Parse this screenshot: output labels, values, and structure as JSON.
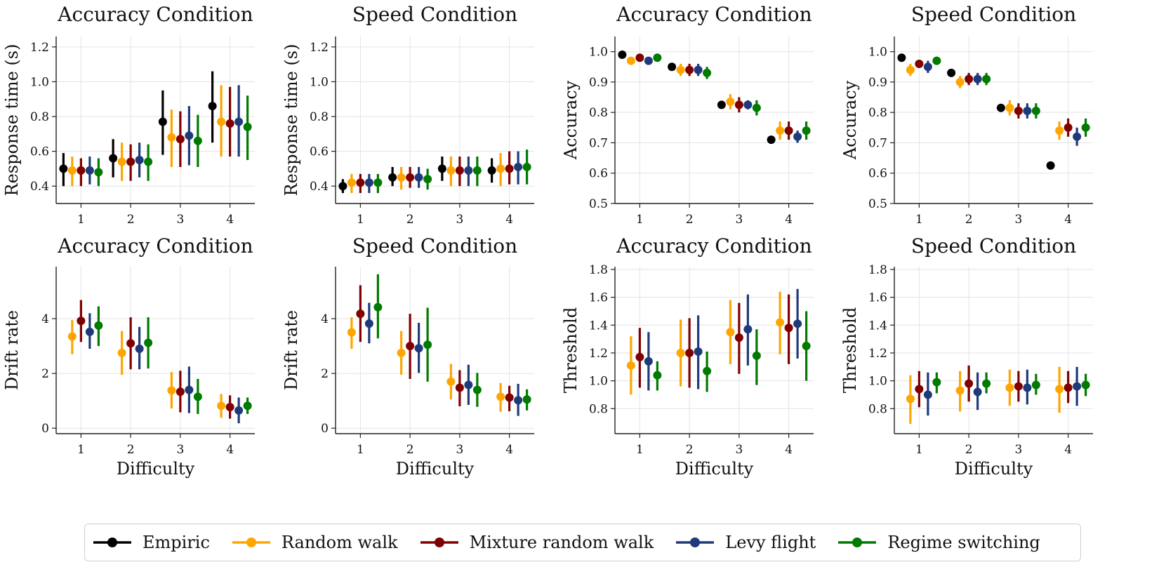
{
  "figure": {
    "legend": [
      {
        "name": "Empiric",
        "color": "#000000"
      },
      {
        "name": "Random walk",
        "color": "#FFA500"
      },
      {
        "name": "Mixture random walk",
        "color": "#800000"
      },
      {
        "name": "Levy flight",
        "color": "#1F3A7A"
      },
      {
        "name": "Regime switching",
        "color": "#007A00"
      }
    ]
  },
  "chart_data": [
    {
      "type": "scatter",
      "title": "Accuracy Condition",
      "xlabel": "",
      "ylabel": "Response time (s)",
      "categories": [
        "1",
        "2",
        "3",
        "4"
      ],
      "ylim": [
        0.3,
        1.26
      ],
      "yticks": [
        "0.4",
        "0.6",
        "0.8",
        "1.0",
        "1.2"
      ],
      "series": [
        {
          "name": "Empiric",
          "values": [
            0.5,
            0.56,
            0.77,
            0.86
          ],
          "lower": [
            0.4,
            0.45,
            0.58,
            0.65
          ],
          "upper": [
            0.59,
            0.67,
            0.95,
            1.06
          ]
        },
        {
          "name": "Random walk",
          "values": [
            0.49,
            0.54,
            0.68,
            0.77
          ],
          "lower": [
            0.4,
            0.43,
            0.51,
            0.57
          ],
          "upper": [
            0.57,
            0.65,
            0.84,
            0.98
          ]
        },
        {
          "name": "Mixture random walk",
          "values": [
            0.49,
            0.54,
            0.67,
            0.76
          ],
          "lower": [
            0.4,
            0.43,
            0.51,
            0.57
          ],
          "upper": [
            0.56,
            0.64,
            0.83,
            0.97
          ]
        },
        {
          "name": "Levy flight",
          "values": [
            0.49,
            0.55,
            0.69,
            0.77
          ],
          "lower": [
            0.41,
            0.45,
            0.52,
            0.57
          ],
          "upper": [
            0.57,
            0.65,
            0.86,
            0.98
          ]
        },
        {
          "name": "Regime switching",
          "values": [
            0.48,
            0.54,
            0.66,
            0.74
          ],
          "lower": [
            0.4,
            0.43,
            0.51,
            0.55
          ],
          "upper": [
            0.56,
            0.64,
            0.81,
            0.92
          ]
        }
      ]
    },
    {
      "type": "scatter",
      "title": "Speed Condition",
      "xlabel": "",
      "ylabel": "Response time (s)",
      "categories": [
        "1",
        "2",
        "3",
        "4"
      ],
      "ylim": [
        0.3,
        1.26
      ],
      "yticks": [
        "0.4",
        "0.6",
        "0.8",
        "1.0",
        "1.2"
      ],
      "series": [
        {
          "name": "Empiric",
          "values": [
            0.4,
            0.45,
            0.5,
            0.49
          ],
          "lower": [
            0.36,
            0.4,
            0.43,
            0.42
          ],
          "upper": [
            0.44,
            0.51,
            0.57,
            0.56
          ]
        },
        {
          "name": "Random walk",
          "values": [
            0.42,
            0.45,
            0.49,
            0.5
          ],
          "lower": [
            0.36,
            0.38,
            0.4,
            0.4
          ],
          "upper": [
            0.47,
            0.51,
            0.57,
            0.59
          ]
        },
        {
          "name": "Mixture random walk",
          "values": [
            0.42,
            0.45,
            0.49,
            0.5
          ],
          "lower": [
            0.36,
            0.39,
            0.4,
            0.41
          ],
          "upper": [
            0.47,
            0.51,
            0.57,
            0.6
          ]
        },
        {
          "name": "Levy flight",
          "values": [
            0.42,
            0.45,
            0.49,
            0.51
          ],
          "lower": [
            0.36,
            0.39,
            0.4,
            0.41
          ],
          "upper": [
            0.47,
            0.51,
            0.57,
            0.6
          ]
        },
        {
          "name": "Regime switching",
          "values": [
            0.42,
            0.44,
            0.49,
            0.51
          ],
          "lower": [
            0.36,
            0.38,
            0.4,
            0.41
          ],
          "upper": [
            0.47,
            0.5,
            0.57,
            0.61
          ]
        }
      ]
    },
    {
      "type": "scatter",
      "title": "Accuracy Condition",
      "xlabel": "",
      "ylabel": "Accuracy",
      "categories": [
        "1",
        "2",
        "3",
        "4"
      ],
      "ylim": [
        0.5,
        1.05
      ],
      "yticks": [
        "0.5",
        "0.6",
        "0.7",
        "0.8",
        "0.9",
        "1.0"
      ],
      "series": [
        {
          "name": "Empiric",
          "values": [
            0.99,
            0.95,
            0.825,
            0.71
          ],
          "lower": [
            0.99,
            0.95,
            0.825,
            0.71
          ],
          "upper": [
            0.99,
            0.95,
            0.825,
            0.71
          ]
        },
        {
          "name": "Random walk",
          "values": [
            0.97,
            0.94,
            0.835,
            0.74
          ],
          "lower": [
            0.96,
            0.92,
            0.81,
            0.71
          ],
          "upper": [
            0.98,
            0.96,
            0.86,
            0.77
          ]
        },
        {
          "name": "Mixture random walk",
          "values": [
            0.98,
            0.94,
            0.825,
            0.74
          ],
          "lower": [
            0.97,
            0.92,
            0.8,
            0.71
          ],
          "upper": [
            0.99,
            0.96,
            0.85,
            0.77
          ]
        },
        {
          "name": "Levy flight",
          "values": [
            0.97,
            0.94,
            0.825,
            0.72
          ],
          "lower": [
            0.96,
            0.92,
            0.81,
            0.7
          ],
          "upper": [
            0.98,
            0.96,
            0.84,
            0.74
          ]
        },
        {
          "name": "Regime switching",
          "values": [
            0.98,
            0.93,
            0.815,
            0.74
          ],
          "lower": [
            0.97,
            0.91,
            0.79,
            0.71
          ],
          "upper": [
            0.99,
            0.95,
            0.84,
            0.77
          ]
        }
      ]
    },
    {
      "type": "scatter",
      "title": "Speed Condition",
      "xlabel": "",
      "ylabel": "Accuracy",
      "categories": [
        "1",
        "2",
        "3",
        "4"
      ],
      "ylim": [
        0.5,
        1.05
      ],
      "yticks": [
        "0.5",
        "0.6",
        "0.7",
        "0.8",
        "0.9",
        "1.0"
      ],
      "series": [
        {
          "name": "Empiric",
          "values": [
            0.98,
            0.93,
            0.815,
            0.625
          ],
          "lower": [
            0.98,
            0.93,
            0.815,
            0.625
          ],
          "upper": [
            0.98,
            0.93,
            0.815,
            0.625
          ]
        },
        {
          "name": "Random walk",
          "values": [
            0.94,
            0.9,
            0.815,
            0.74
          ],
          "lower": [
            0.92,
            0.88,
            0.79,
            0.71
          ],
          "upper": [
            0.96,
            0.92,
            0.84,
            0.77
          ]
        },
        {
          "name": "Mixture random walk",
          "values": [
            0.96,
            0.91,
            0.805,
            0.75
          ],
          "lower": [
            0.95,
            0.89,
            0.78,
            0.72
          ],
          "upper": [
            0.97,
            0.93,
            0.83,
            0.78
          ]
        },
        {
          "name": "Levy flight",
          "values": [
            0.95,
            0.91,
            0.805,
            0.72
          ],
          "lower": [
            0.93,
            0.89,
            0.78,
            0.69
          ],
          "upper": [
            0.97,
            0.93,
            0.83,
            0.75
          ]
        },
        {
          "name": "Regime switching",
          "values": [
            0.97,
            0.91,
            0.805,
            0.75
          ],
          "lower": [
            0.96,
            0.89,
            0.78,
            0.72
          ],
          "upper": [
            0.98,
            0.93,
            0.83,
            0.78
          ]
        }
      ]
    },
    {
      "type": "scatter",
      "title": "Accuracy Condition",
      "xlabel": "Difficulty",
      "ylabel": "Drift rate",
      "categories": [
        "1",
        "2",
        "3",
        "4"
      ],
      "ylim": [
        -0.2,
        5.9
      ],
      "yticks": [
        "0",
        "2",
        "4"
      ],
      "series": [
        {
          "name": "Random walk",
          "values": [
            3.35,
            2.75,
            1.38,
            0.82
          ],
          "lower": [
            2.7,
            1.95,
            0.72,
            0.38
          ],
          "upper": [
            3.95,
            3.55,
            2.05,
            1.25
          ]
        },
        {
          "name": "Mixture random walk",
          "values": [
            3.92,
            3.1,
            1.33,
            0.77
          ],
          "lower": [
            3.15,
            2.15,
            0.58,
            0.35
          ],
          "upper": [
            4.68,
            4.05,
            2.1,
            1.2
          ]
        },
        {
          "name": "Levy flight",
          "values": [
            3.52,
            2.9,
            1.4,
            0.65
          ],
          "lower": [
            2.9,
            2.15,
            0.55,
            0.18
          ],
          "upper": [
            4.2,
            3.7,
            2.25,
            1.12
          ]
        },
        {
          "name": "Regime switching",
          "values": [
            3.75,
            3.12,
            1.15,
            0.82
          ],
          "lower": [
            3.0,
            2.18,
            0.52,
            0.52
          ],
          "upper": [
            4.45,
            4.05,
            1.8,
            1.12
          ]
        }
      ]
    },
    {
      "type": "scatter",
      "title": "Speed Condition",
      "xlabel": "Difficulty",
      "ylabel": "Drift rate",
      "categories": [
        "1",
        "2",
        "3",
        "4"
      ],
      "ylim": [
        -0.2,
        5.9
      ],
      "yticks": [
        "0",
        "2",
        "4"
      ],
      "series": [
        {
          "name": "Random walk",
          "values": [
            3.5,
            2.75,
            1.7,
            1.15
          ],
          "lower": [
            2.9,
            1.95,
            1.05,
            0.6
          ],
          "upper": [
            4.05,
            3.55,
            2.35,
            1.65
          ]
        },
        {
          "name": "Mixture random walk",
          "values": [
            4.18,
            3.0,
            1.48,
            1.12
          ],
          "lower": [
            3.15,
            1.8,
            0.8,
            0.62
          ],
          "upper": [
            5.22,
            4.18,
            2.12,
            1.55
          ]
        },
        {
          "name": "Levy flight",
          "values": [
            3.82,
            2.92,
            1.58,
            1.02
          ],
          "lower": [
            3.1,
            2.02,
            0.85,
            0.45
          ],
          "upper": [
            4.58,
            3.85,
            2.32,
            1.62
          ]
        },
        {
          "name": "Regime switching",
          "values": [
            4.42,
            3.05,
            1.4,
            1.05
          ],
          "lower": [
            3.28,
            1.7,
            0.78,
            0.65
          ],
          "upper": [
            5.62,
            4.4,
            2.02,
            1.42
          ]
        }
      ]
    },
    {
      "type": "scatter",
      "title": "Accuracy Condition",
      "xlabel": "Difficulty",
      "ylabel": "Threshold",
      "categories": [
        "1",
        "2",
        "3",
        "4"
      ],
      "ylim": [
        0.62,
        1.82
      ],
      "yticks": [
        "0.8",
        "1.0",
        "1.2",
        "1.4",
        "1.6",
        "1.8"
      ],
      "series": [
        {
          "name": "Random walk",
          "values": [
            1.11,
            1.2,
            1.35,
            1.42
          ],
          "lower": [
            0.9,
            0.96,
            1.12,
            1.19
          ],
          "upper": [
            1.32,
            1.44,
            1.58,
            1.64
          ]
        },
        {
          "name": "Mixture random walk",
          "values": [
            1.17,
            1.2,
            1.31,
            1.38
          ],
          "lower": [
            0.95,
            0.95,
            1.05,
            1.12
          ],
          "upper": [
            1.38,
            1.45,
            1.56,
            1.62
          ]
        },
        {
          "name": "Levy flight",
          "values": [
            1.14,
            1.21,
            1.37,
            1.41
          ],
          "lower": [
            0.93,
            0.94,
            1.11,
            1.16
          ],
          "upper": [
            1.35,
            1.47,
            1.62,
            1.66
          ]
        },
        {
          "name": "Regime switching",
          "values": [
            1.04,
            1.07,
            1.18,
            1.25
          ],
          "lower": [
            0.93,
            0.92,
            0.97,
            1.0
          ],
          "upper": [
            1.14,
            1.21,
            1.37,
            1.5
          ]
        }
      ]
    },
    {
      "type": "scatter",
      "title": "Speed Condition",
      "xlabel": "Difficulty",
      "ylabel": "Threshold",
      "categories": [
        "1",
        "2",
        "3",
        "4"
      ],
      "ylim": [
        0.62,
        1.82
      ],
      "yticks": [
        "0.8",
        "1.0",
        "1.2",
        "1.4",
        "1.6",
        "1.8"
      ],
      "series": [
        {
          "name": "Random walk",
          "values": [
            0.87,
            0.93,
            0.95,
            0.94
          ],
          "lower": [
            0.69,
            0.78,
            0.82,
            0.77
          ],
          "upper": [
            1.04,
            1.07,
            1.08,
            1.1
          ]
        },
        {
          "name": "Mixture random walk",
          "values": [
            0.94,
            0.98,
            0.96,
            0.95
          ],
          "lower": [
            0.81,
            0.85,
            0.85,
            0.84
          ],
          "upper": [
            1.07,
            1.11,
            1.07,
            1.07
          ]
        },
        {
          "name": "Levy flight",
          "values": [
            0.9,
            0.92,
            0.95,
            0.96
          ],
          "lower": [
            0.75,
            0.79,
            0.83,
            0.82
          ],
          "upper": [
            1.06,
            1.06,
            1.08,
            1.1
          ]
        },
        {
          "name": "Regime switching",
          "values": [
            0.99,
            0.98,
            0.97,
            0.97
          ],
          "lower": [
            0.91,
            0.91,
            0.9,
            0.89
          ],
          "upper": [
            1.06,
            1.06,
            1.05,
            1.05
          ]
        }
      ]
    }
  ]
}
